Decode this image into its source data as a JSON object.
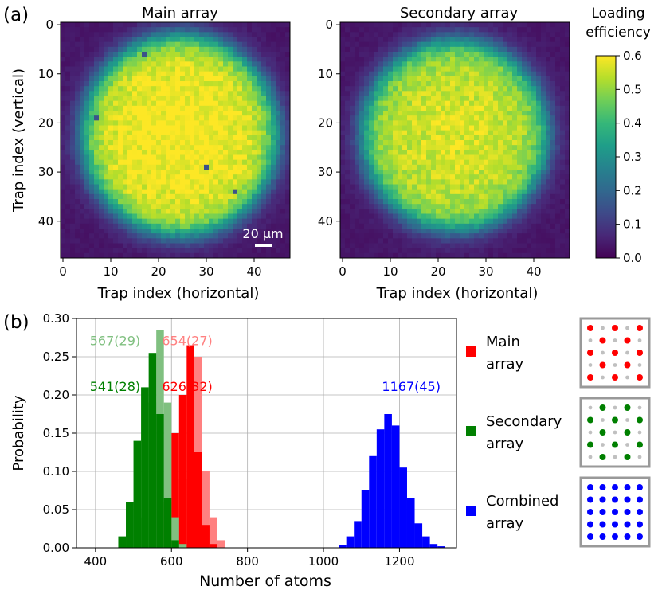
{
  "panel_a_label": "(a)",
  "panel_b_label": "(b)",
  "scalebar_label": "20 µm",
  "legend": [
    {
      "label_line1": "Main",
      "label_line2": "array",
      "color": "#ff0000",
      "pattern": "main"
    },
    {
      "label_line1": "Secondary",
      "label_line2": "array",
      "color": "#008000",
      "pattern": "secondary"
    },
    {
      "label_line1": "Combined",
      "label_line2": "array",
      "color": "#0000ff",
      "pattern": "combined"
    }
  ],
  "chart_data": [
    {
      "type": "heatmap",
      "title": "Main array",
      "xlabel": "Trap index (horizontal)",
      "ylabel": "Trap index (vertical)",
      "grid_size": 48,
      "xticks": [
        "0",
        "10",
        "20",
        "30",
        "40"
      ],
      "yticks": [
        "0",
        "10",
        "20",
        "30",
        "40"
      ],
      "center": [
        24.5,
        22.5
      ],
      "radius": 20.5,
      "peak": 0.57,
      "defects": [
        [
          17,
          6
        ],
        [
          7,
          19
        ],
        [
          30,
          29
        ],
        [
          36,
          34
        ]
      ]
    },
    {
      "type": "heatmap",
      "title": "Secondary array",
      "xlabel": "Trap index (horizontal)",
      "ylabel": "",
      "grid_size": 48,
      "xticks": [
        "0",
        "10",
        "20",
        "30",
        "40"
      ],
      "yticks": [
        "0",
        "10",
        "20",
        "30",
        "40"
      ],
      "center": [
        23.5,
        22.5
      ],
      "radius": 19.5,
      "peak": 0.53,
      "defects": [
        [
          37,
          38
        ],
        [
          38,
          38
        ]
      ]
    },
    {
      "type": "colorbar",
      "title_line1": "Loading",
      "title_line2": "efficiency",
      "range": [
        0,
        0.6
      ],
      "ticks": [
        "0.0",
        "0.1",
        "0.2",
        "0.3",
        "0.4",
        "0.5",
        "0.6"
      ],
      "colormap": [
        "#440154",
        "#482878",
        "#3e4a89",
        "#31688e",
        "#26828e",
        "#1f9e89",
        "#35b779",
        "#6ece58",
        "#b5de2b",
        "#fde725"
      ]
    },
    {
      "type": "bar",
      "title": "",
      "xlabel": "Number of atoms",
      "ylabel": "Probability",
      "xlim": [
        350,
        1350
      ],
      "ylim": [
        0,
        0.3
      ],
      "xticks": [
        "400",
        "600",
        "800",
        "1000",
        "1200"
      ],
      "yticks": [
        "0.00",
        "0.05",
        "0.10",
        "0.15",
        "0.20",
        "0.25",
        "0.30"
      ],
      "bin_width": 20,
      "series": [
        {
          "name": "Main array (light)",
          "color": "#ff8080",
          "bins": [
            [
              600,
              0.015
            ],
            [
              620,
              0.09
            ],
            [
              640,
              0.2
            ],
            [
              660,
              0.25
            ],
            [
              680,
              0.1
            ],
            [
              700,
              0.04
            ],
            [
              720,
              0.01
            ]
          ]
        },
        {
          "name": "Main array",
          "color": "#ff0000",
          "bins": [
            [
              580,
              0.06
            ],
            [
              600,
              0.15
            ],
            [
              620,
              0.2
            ],
            [
              640,
              0.265
            ],
            [
              660,
              0.125
            ],
            [
              680,
              0.03
            ],
            [
              700,
              0.005
            ]
          ]
        },
        {
          "name": "Secondary array (light)",
          "color": "#80c080",
          "bins": [
            [
              520,
              0.04
            ],
            [
              540,
              0.19
            ],
            [
              560,
              0.285
            ],
            [
              580,
              0.19
            ],
            [
              600,
              0.04
            ],
            [
              620,
              0.005
            ]
          ]
        },
        {
          "name": "Secondary array",
          "color": "#008000",
          "bins": [
            [
              460,
              0.015
            ],
            [
              480,
              0.06
            ],
            [
              500,
              0.14
            ],
            [
              520,
              0.21
            ],
            [
              540,
              0.255
            ],
            [
              560,
              0.175
            ],
            [
              580,
              0.065
            ],
            [
              600,
              0.01
            ]
          ]
        },
        {
          "name": "Combined array",
          "color": "#0000ff",
          "bins": [
            [
              1040,
              0.004
            ],
            [
              1060,
              0.015
            ],
            [
              1080,
              0.035
            ],
            [
              1100,
              0.075
            ],
            [
              1120,
              0.12
            ],
            [
              1140,
              0.155
            ],
            [
              1160,
              0.175
            ],
            [
              1180,
              0.16
            ],
            [
              1200,
              0.105
            ],
            [
              1220,
              0.065
            ],
            [
              1240,
              0.032
            ],
            [
              1260,
              0.015
            ],
            [
              1280,
              0.005
            ],
            [
              1300,
              0.002
            ]
          ]
        }
      ],
      "annotations": [
        {
          "text": "567(29)",
          "x": 518,
          "y": 0.265,
          "color": "#80c080"
        },
        {
          "text": "654(27)",
          "x": 708,
          "y": 0.265,
          "color": "#ff8080"
        },
        {
          "text": "541(28)",
          "x": 518,
          "y": 0.205,
          "color": "#008000"
        },
        {
          "text": "626(32)",
          "x": 708,
          "y": 0.205,
          "color": "#ff0000"
        },
        {
          "text": "1167(45)",
          "x": 1308,
          "y": 0.205,
          "color": "#0000ff"
        }
      ]
    }
  ]
}
